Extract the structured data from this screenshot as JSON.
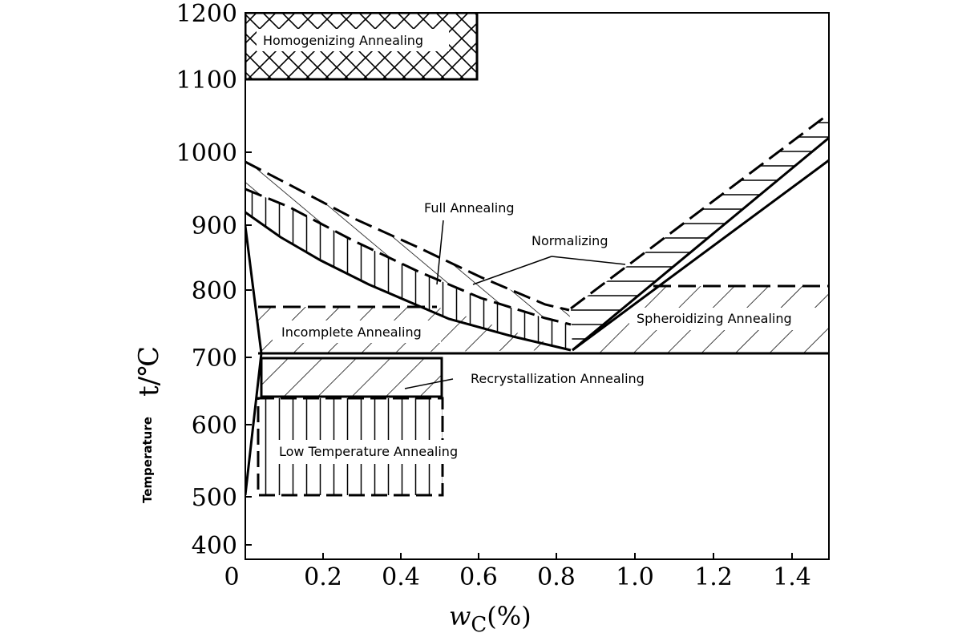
{
  "axes": {
    "x_label_var": "w",
    "x_label_sub": "C",
    "x_label_unit": "(%)",
    "y_label_word": "Temperature",
    "y_label_symbol": "t/℃",
    "x_ticks": [
      "0",
      "0.2",
      "0.4",
      "0.6",
      "0.8",
      "1.0",
      "1.2",
      "1.4"
    ],
    "y_ticks": [
      "1200",
      "1100",
      "1000",
      "900",
      "800",
      "700",
      "600",
      "500",
      "400"
    ]
  },
  "regions": {
    "homogenizing": "Homogenizing Annealing",
    "full": "Full Annealing",
    "normalizing": "Normalizing",
    "spheroidizing": "Spheroidizing Annealing",
    "incomplete": "Incomplete Annealing",
    "recrystallization": "Recrystallization Annealing",
    "low_temperature": "Low Temperature Annealing"
  }
}
